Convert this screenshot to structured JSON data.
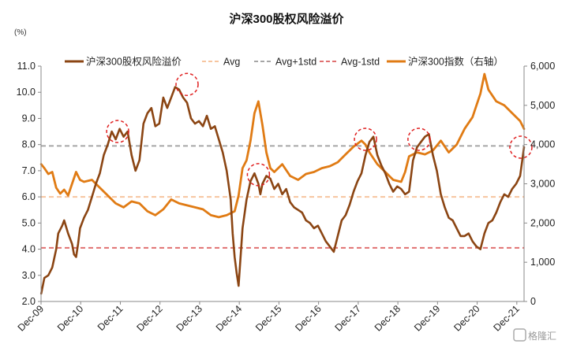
{
  "chart_data": {
    "type": "line",
    "title": "沪深300股权风险溢价",
    "y_unit": "(%)",
    "ylim_left": [
      2.0,
      11.0
    ],
    "ylim_right": [
      0,
      6000
    ],
    "yticks_left": [
      "2.0",
      "3.0",
      "4.0",
      "5.0",
      "6.0",
      "7.0",
      "8.0",
      "9.0",
      "10.0",
      "11.0"
    ],
    "yticks_right": [
      "0",
      "1,000",
      "2,000",
      "3,000",
      "4,000",
      "5,000",
      "6,000"
    ],
    "x_labels": [
      "Dec-09",
      "Dec-10",
      "Dec-11",
      "Dec-12",
      "Dec-13",
      "Dec-14",
      "Dec-15",
      "Dec-16",
      "Dec-17",
      "Dec-18",
      "Dec-19",
      "Dec-20",
      "Dec-21"
    ],
    "x_range": [
      2009.917,
      2022.1
    ],
    "legend": [
      "沪深300股权风险溢价",
      "Avg",
      "Avg+1std",
      "Avg-1std",
      "沪深300指数（右轴）"
    ],
    "colors": {
      "erp": "#8B4513",
      "avg": "#F7C59F",
      "avg_plus": "#A6A6A6",
      "avg_minus": "#E07070",
      "index": "#E07B14",
      "highlight": "#E02020"
    },
    "reference_lines": {
      "avg": 6.0,
      "avg_plus_1std": 7.95,
      "avg_minus_1std": 4.05
    },
    "series": [
      {
        "name": "沪深300股权风险溢价",
        "axis": "left",
        "x": [
          2009.92,
          2010.0,
          2010.1,
          2010.2,
          2010.3,
          2010.35,
          2010.45,
          2010.5,
          2010.6,
          2010.7,
          2010.75,
          2010.8,
          2010.85,
          2010.9,
          2011.0,
          2011.1,
          2011.2,
          2011.3,
          2011.4,
          2011.5,
          2011.6,
          2011.7,
          2011.8,
          2011.9,
          2012.0,
          2012.1,
          2012.2,
          2012.3,
          2012.4,
          2012.5,
          2012.6,
          2012.7,
          2012.8,
          2012.9,
          2013.0,
          2013.1,
          2013.2,
          2013.3,
          2013.4,
          2013.5,
          2013.6,
          2013.7,
          2013.8,
          2013.9,
          2014.0,
          2014.1,
          2014.2,
          2014.3,
          2014.4,
          2014.5,
          2014.6,
          2014.7,
          2014.75,
          2014.8,
          2014.85,
          2014.9,
          2015.0,
          2015.1,
          2015.2,
          2015.3,
          2015.4,
          2015.45,
          2015.5,
          2015.6,
          2015.7,
          2015.8,
          2015.9,
          2016.0,
          2016.1,
          2016.2,
          2016.3,
          2016.4,
          2016.5,
          2016.6,
          2016.7,
          2016.8,
          2016.9,
          2017.0,
          2017.1,
          2017.2,
          2017.3,
          2017.4,
          2017.5,
          2017.6,
          2017.7,
          2017.8,
          2017.9,
          2018.0,
          2018.1,
          2018.2,
          2018.3,
          2018.4,
          2018.5,
          2018.6,
          2018.7,
          2018.8,
          2018.9,
          2019.0,
          2019.1,
          2019.2,
          2019.3,
          2019.4,
          2019.5,
          2019.6,
          2019.7,
          2019.8,
          2019.9,
          2020.0,
          2020.1,
          2020.2,
          2020.3,
          2020.4,
          2020.5,
          2020.6,
          2020.7,
          2020.8,
          2020.9,
          2021.0,
          2021.1,
          2021.2,
          2021.3,
          2021.4,
          2021.5,
          2021.6,
          2021.7,
          2021.8,
          2021.9,
          2022.0,
          2022.1
        ],
        "values": [
          2.3,
          2.9,
          3.0,
          3.3,
          4.0,
          4.6,
          4.9,
          5.1,
          4.6,
          4.2,
          3.8,
          3.7,
          4.2,
          4.8,
          5.2,
          5.5,
          6.0,
          6.5,
          6.9,
          7.6,
          8.0,
          8.5,
          8.2,
          8.6,
          8.3,
          8.5,
          7.6,
          7.0,
          7.4,
          8.8,
          9.2,
          9.4,
          8.7,
          8.8,
          9.8,
          9.4,
          9.8,
          10.2,
          10.1,
          9.8,
          9.6,
          9.0,
          8.8,
          8.9,
          8.7,
          9.1,
          8.6,
          8.7,
          8.2,
          7.7,
          7.0,
          5.9,
          4.6,
          3.7,
          3.1,
          2.6,
          4.8,
          5.9,
          6.6,
          6.9,
          6.5,
          6.1,
          6.5,
          6.8,
          6.7,
          6.3,
          6.5,
          6.1,
          6.3,
          5.8,
          5.6,
          5.5,
          5.4,
          5.1,
          5.0,
          4.8,
          4.9,
          4.6,
          4.3,
          4.1,
          3.9,
          4.5,
          5.1,
          5.3,
          5.7,
          6.2,
          6.6,
          6.9,
          7.6,
          8.1,
          8.3,
          7.6,
          7.2,
          6.9,
          6.5,
          6.2,
          6.4,
          6.3,
          6.1,
          6.2,
          7.4,
          7.9,
          8.1,
          8.3,
          8.4,
          7.6,
          7.0,
          6.1,
          5.6,
          5.2,
          5.1,
          4.8,
          4.5,
          4.5,
          4.6,
          4.3,
          4.1,
          4.0,
          4.6,
          5.0,
          5.1,
          5.4,
          5.8,
          6.1,
          6.0,
          6.3,
          6.5,
          6.8,
          7.9
        ]
      },
      {
        "name": "沪深300指数（右轴）",
        "axis": "right",
        "x": [
          2009.92,
          2010.0,
          2010.1,
          2010.2,
          2010.3,
          2010.4,
          2010.5,
          2010.6,
          2010.7,
          2010.8,
          2010.9,
          2011.0,
          2011.2,
          2011.4,
          2011.6,
          2011.8,
          2012.0,
          2012.2,
          2012.4,
          2012.6,
          2012.8,
          2013.0,
          2013.2,
          2013.4,
          2013.6,
          2013.8,
          2014.0,
          2014.2,
          2014.4,
          2014.6,
          2014.8,
          2014.9,
          2015.0,
          2015.1,
          2015.2,
          2015.3,
          2015.4,
          2015.5,
          2015.6,
          2015.7,
          2015.8,
          2015.9,
          2016.0,
          2016.2,
          2016.4,
          2016.6,
          2016.8,
          2017.0,
          2017.2,
          2017.4,
          2017.6,
          2017.8,
          2018.0,
          2018.1,
          2018.2,
          2018.4,
          2018.6,
          2018.8,
          2019.0,
          2019.1,
          2019.2,
          2019.4,
          2019.6,
          2019.8,
          2020.0,
          2020.2,
          2020.4,
          2020.6,
          2020.8,
          2020.9,
          2021.0,
          2021.1,
          2021.2,
          2021.4,
          2021.6,
          2021.8,
          2022.0,
          2022.1
        ],
        "values": [
          3500,
          3400,
          3250,
          3300,
          2900,
          2750,
          2850,
          2700,
          3000,
          3300,
          3100,
          3050,
          3100,
          2900,
          2700,
          2500,
          2400,
          2550,
          2500,
          2300,
          2200,
          2350,
          2600,
          2500,
          2450,
          2400,
          2350,
          2200,
          2150,
          2200,
          2300,
          2700,
          3400,
          3600,
          4100,
          4800,
          5100,
          4500,
          3800,
          3400,
          3300,
          3400,
          3500,
          3200,
          3100,
          3250,
          3300,
          3400,
          3450,
          3550,
          3750,
          3950,
          4100,
          4000,
          3800,
          3500,
          3300,
          3100,
          3050,
          3300,
          3700,
          3800,
          3750,
          3850,
          4100,
          3800,
          4000,
          4400,
          4700,
          5000,
          5300,
          5800,
          5400,
          5100,
          5000,
          4800,
          4600,
          4400
        ]
      }
    ],
    "highlight_circles": [
      {
        "x": 2011.85,
        "y": 8.5
      },
      {
        "x": 2013.6,
        "y": 10.3
      },
      {
        "x": 2015.4,
        "y": 6.85
      },
      {
        "x": 2018.1,
        "y": 8.2
      },
      {
        "x": 2019.45,
        "y": 8.2
      },
      {
        "x": 2022.02,
        "y": 7.9
      }
    ],
    "watermark": "格隆汇"
  }
}
